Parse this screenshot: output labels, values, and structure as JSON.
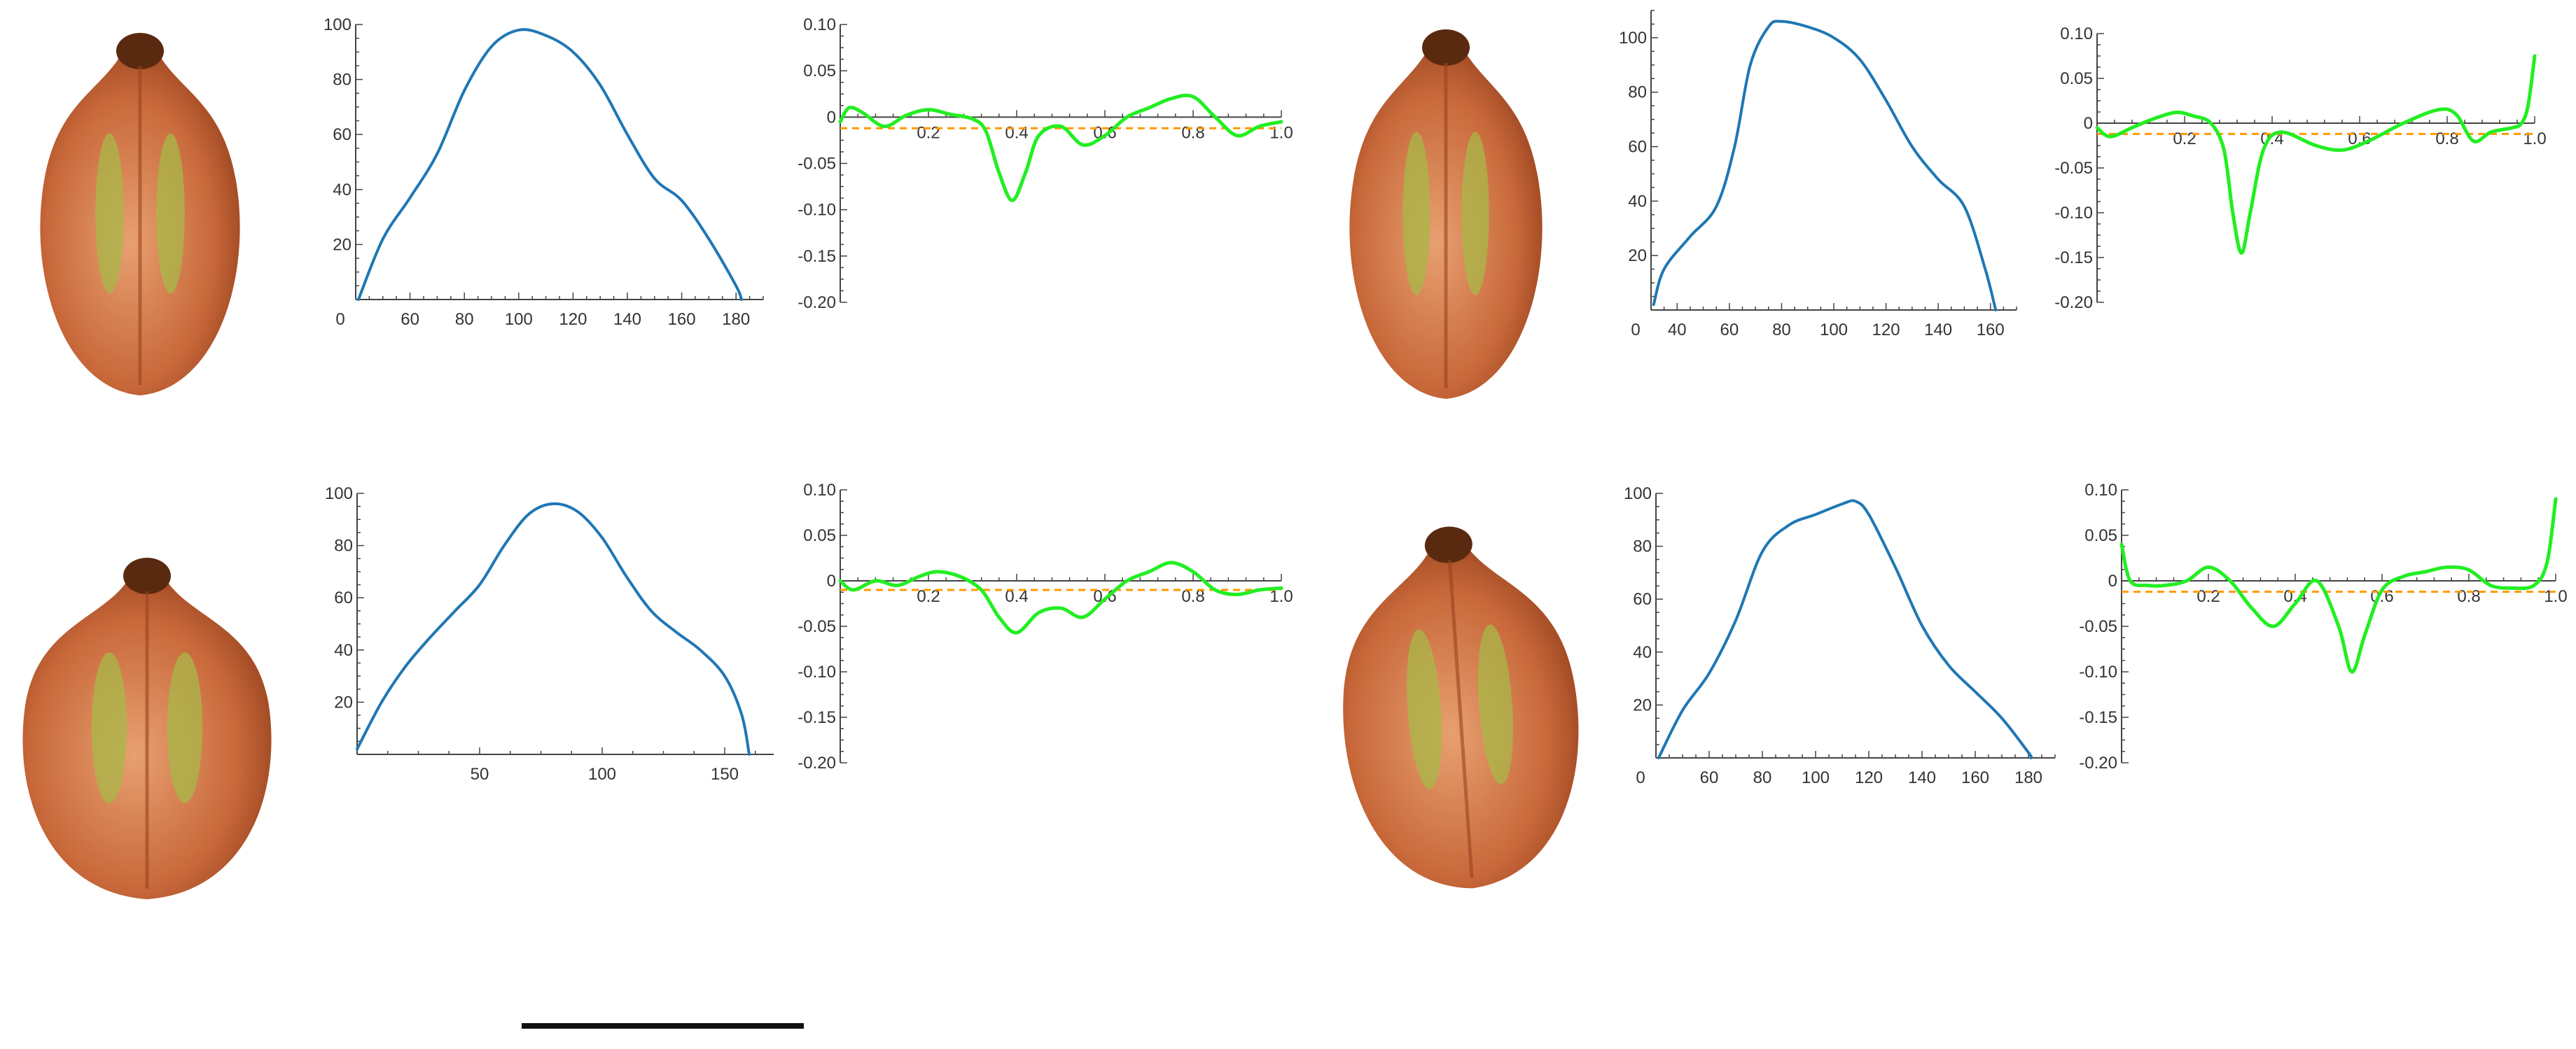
{
  "figure": {
    "seed_image_names": [
      "seed-photo-top-left",
      "seed-photo-bottom-left",
      "seed-photo-top-right",
      "seed-photo-bottom-right"
    ],
    "scale_bar_label": ""
  },
  "colors": {
    "profile": "#1f77b4",
    "curvature": "#22ee22",
    "reference": "#ff9900",
    "axis": "#444444",
    "seed_light": "#e8a070",
    "seed_mid": "#c8683a",
    "seed_dark": "#9a4420",
    "seed_green": "#a8b848",
    "seed_tip": "#5a2a10"
  },
  "chart_data": [
    {
      "id": "profile-top-left",
      "type": "line",
      "title": "",
      "xlabel": "",
      "ylabel": "",
      "xlim": [
        40,
        190
      ],
      "ylim": [
        0,
        100
      ],
      "x_origin_tick": "0",
      "xticks": [
        60,
        80,
        100,
        120,
        140,
        160,
        180
      ],
      "xtick_labels": [
        "60",
        "80",
        "100",
        "120",
        "140",
        "160",
        "180"
      ],
      "yticks": [
        20,
        40,
        60,
        80,
        100
      ],
      "ytick_labels": [
        "20",
        "40",
        "60",
        "80",
        "100"
      ],
      "series": [
        {
          "name": "width-profile",
          "x": [
            41,
            50,
            60,
            70,
            80,
            90,
            100,
            110,
            120,
            130,
            140,
            150,
            160,
            170,
            180,
            182
          ],
          "y": [
            0,
            22,
            37,
            53,
            76,
            92,
            98,
            96,
            90,
            78,
            60,
            44,
            36,
            22,
            5,
            0
          ]
        }
      ]
    },
    {
      "id": "curvature-top-left",
      "type": "line",
      "title": "",
      "xlabel": "",
      "ylabel": "",
      "xlim": [
        0,
        1
      ],
      "ylim": [
        -0.2,
        0.1
      ],
      "reference_line": -0.012,
      "xticks": [
        0.2,
        0.4,
        0.6,
        0.8,
        1.0
      ],
      "xtick_labels": [
        "0.2",
        "0.4",
        "0.6",
        "0.8",
        "1.0"
      ],
      "yticks": [
        0.1,
        0.05,
        0,
        -0.05,
        -0.1,
        -0.15,
        -0.2
      ],
      "ytick_labels": [
        "0.10",
        "0.05",
        "0",
        "-0.05",
        "-0.10",
        "-0.15",
        "-0.20"
      ],
      "series": [
        {
          "name": "curvature",
          "x": [
            0,
            0.02,
            0.05,
            0.1,
            0.15,
            0.2,
            0.25,
            0.3,
            0.33,
            0.36,
            0.39,
            0.42,
            0.45,
            0.5,
            0.55,
            0.6,
            0.65,
            0.7,
            0.75,
            0.8,
            0.85,
            0.9,
            0.95,
            1.0
          ],
          "y": [
            -0.005,
            0.01,
            0.005,
            -0.01,
            0.002,
            0.008,
            0.003,
            -0.002,
            -0.015,
            -0.06,
            -0.09,
            -0.06,
            -0.02,
            -0.01,
            -0.03,
            -0.02,
            0.0,
            0.01,
            0.02,
            0.022,
            0.0,
            -0.02,
            -0.01,
            -0.005
          ]
        }
      ]
    },
    {
      "id": "profile-bottom-left",
      "type": "line",
      "title": "",
      "xlabel": "",
      "ylabel": "",
      "xlim": [
        0,
        170
      ],
      "ylim": [
        0,
        100
      ],
      "x_origin_tick": "",
      "xticks": [
        50,
        100,
        150
      ],
      "xtick_labels": [
        "50",
        "100",
        "150"
      ],
      "yticks": [
        20,
        40,
        60,
        80,
        100
      ],
      "ytick_labels": [
        "20",
        "40",
        "60",
        "80",
        "100"
      ],
      "series": [
        {
          "name": "width-profile",
          "x": [
            0,
            10,
            20,
            30,
            40,
            50,
            60,
            70,
            80,
            90,
            100,
            110,
            120,
            130,
            140,
            150,
            157,
            160
          ],
          "y": [
            2,
            20,
            34,
            45,
            55,
            65,
            80,
            92,
            96,
            93,
            83,
            68,
            55,
            47,
            40,
            30,
            15,
            0
          ]
        }
      ]
    },
    {
      "id": "curvature-bottom-left",
      "type": "line",
      "title": "",
      "xlabel": "",
      "ylabel": "",
      "xlim": [
        0,
        1
      ],
      "ylim": [
        -0.2,
        0.1
      ],
      "reference_line": -0.01,
      "xticks": [
        0.2,
        0.4,
        0.6,
        0.8,
        1.0
      ],
      "xtick_labels": [
        "0.2",
        "0.4",
        "0.6",
        "0.8",
        "1.0"
      ],
      "yticks": [
        0.1,
        0.05,
        0,
        -0.05,
        -0.1,
        -0.15,
        -0.2
      ],
      "ytick_labels": [
        "0.10",
        "0.05",
        "0",
        "-0.05",
        "-0.10",
        "-0.15",
        "-0.20"
      ],
      "series": [
        {
          "name": "curvature",
          "x": [
            0,
            0.03,
            0.08,
            0.13,
            0.18,
            0.22,
            0.27,
            0.32,
            0.36,
            0.4,
            0.45,
            0.5,
            0.55,
            0.6,
            0.65,
            0.7,
            0.75,
            0.8,
            0.85,
            0.9,
            0.95,
            1.0
          ],
          "y": [
            0.0,
            -0.01,
            0.0,
            -0.005,
            0.005,
            0.01,
            0.005,
            -0.01,
            -0.04,
            -0.057,
            -0.035,
            -0.03,
            -0.04,
            -0.02,
            0.0,
            0.01,
            0.02,
            0.01,
            -0.01,
            -0.015,
            -0.01,
            -0.008
          ]
        }
      ]
    },
    {
      "id": "profile-top-right",
      "type": "line",
      "title": "",
      "xlabel": "",
      "ylabel": "",
      "xlim": [
        30,
        170
      ],
      "ylim": [
        0,
        110
      ],
      "x_origin_tick": "0",
      "xticks": [
        40,
        60,
        80,
        100,
        120,
        140,
        160
      ],
      "xtick_labels": [
        "40",
        "60",
        "80",
        "100",
        "120",
        "140",
        "160"
      ],
      "yticks": [
        20,
        40,
        60,
        80,
        100
      ],
      "ytick_labels": [
        "20",
        "40",
        "60",
        "80",
        "100"
      ],
      "series": [
        {
          "name": "width-profile",
          "x": [
            31,
            35,
            45,
            55,
            62,
            68,
            75,
            80,
            90,
            100,
            110,
            120,
            130,
            140,
            150,
            158,
            162
          ],
          "y": [
            2,
            15,
            27,
            38,
            60,
            90,
            104,
            106,
            104,
            100,
            92,
            77,
            60,
            48,
            38,
            15,
            0
          ]
        }
      ]
    },
    {
      "id": "curvature-top-right",
      "type": "line",
      "title": "",
      "xlabel": "",
      "ylabel": "",
      "xlim": [
        0,
        1
      ],
      "ylim": [
        -0.2,
        0.1
      ],
      "reference_line": -0.012,
      "xticks": [
        0.2,
        0.4,
        0.6,
        0.8,
        1.0
      ],
      "xtick_labels": [
        "0.2",
        "0.4",
        "0.6",
        "0.8",
        "1.0"
      ],
      "yticks": [
        0.1,
        0.05,
        0,
        -0.05,
        -0.1,
        -0.15,
        -0.2
      ],
      "ytick_labels": [
        "0.10",
        "0.05",
        "0",
        "-0.05",
        "-0.10",
        "-0.15",
        "-0.20"
      ],
      "series": [
        {
          "name": "curvature",
          "x": [
            0,
            0.03,
            0.08,
            0.13,
            0.18,
            0.22,
            0.26,
            0.29,
            0.31,
            0.33,
            0.35,
            0.38,
            0.42,
            0.5,
            0.56,
            0.62,
            0.7,
            0.78,
            0.82,
            0.86,
            0.9,
            0.95,
            0.97,
            0.985,
            1.0
          ],
          "y": [
            -0.005,
            -0.015,
            -0.005,
            0.005,
            0.012,
            0.008,
            0.0,
            -0.03,
            -0.1,
            -0.145,
            -0.1,
            -0.03,
            -0.01,
            -0.025,
            -0.03,
            -0.02,
            0.0,
            0.015,
            0.01,
            -0.02,
            -0.01,
            -0.005,
            0.0,
            0.02,
            0.075
          ]
        }
      ]
    },
    {
      "id": "profile-bottom-right",
      "type": "line",
      "title": "",
      "xlabel": "",
      "ylabel": "",
      "xlim": [
        40,
        190
      ],
      "ylim": [
        0,
        100
      ],
      "x_origin_tick": "0",
      "xticks": [
        60,
        80,
        100,
        120,
        140,
        160,
        180
      ],
      "xtick_labels": [
        "60",
        "80",
        "100",
        "120",
        "140",
        "160",
        "180"
      ],
      "yticks": [
        20,
        40,
        60,
        80,
        100
      ],
      "ytick_labels": [
        "20",
        "40",
        "60",
        "80",
        "100"
      ],
      "series": [
        {
          "name": "width-profile",
          "x": [
            41,
            50,
            60,
            70,
            80,
            90,
            100,
            110,
            115,
            120,
            130,
            140,
            150,
            160,
            170,
            180,
            181
          ],
          "y": [
            0,
            18,
            32,
            52,
            78,
            88,
            92,
            96,
            97,
            92,
            72,
            50,
            35,
            25,
            15,
            2,
            0
          ]
        }
      ]
    },
    {
      "id": "curvature-bottom-right",
      "type": "line",
      "title": "",
      "xlabel": "",
      "ylabel": "",
      "xlim": [
        0,
        1
      ],
      "ylim": [
        -0.2,
        0.1
      ],
      "reference_line": -0.012,
      "xticks": [
        0.2,
        0.4,
        0.6,
        0.8,
        1.0
      ],
      "xtick_labels": [
        "0.2",
        "0.4",
        "0.6",
        "0.8",
        "1.0"
      ],
      "yticks": [
        0.1,
        0.05,
        0,
        -0.05,
        -0.1,
        -0.15,
        -0.2
      ],
      "ytick_labels": [
        "0.10",
        "0.05",
        "0",
        "-0.05",
        "-0.10",
        "-0.15",
        "-0.20"
      ],
      "series": [
        {
          "name": "curvature",
          "x": [
            0,
            0.02,
            0.06,
            0.1,
            0.15,
            0.2,
            0.25,
            0.3,
            0.35,
            0.4,
            0.45,
            0.5,
            0.53,
            0.56,
            0.6,
            0.65,
            0.7,
            0.75,
            0.8,
            0.85,
            0.9,
            0.95,
            0.98,
            1.0
          ],
          "y": [
            0.04,
            0.0,
            -0.005,
            -0.005,
            0.0,
            0.015,
            0.0,
            -0.03,
            -0.05,
            -0.025,
            0.0,
            -0.05,
            -0.1,
            -0.06,
            -0.01,
            0.005,
            0.01,
            0.015,
            0.012,
            -0.005,
            -0.008,
            -0.005,
            0.02,
            0.09
          ]
        }
      ]
    }
  ]
}
